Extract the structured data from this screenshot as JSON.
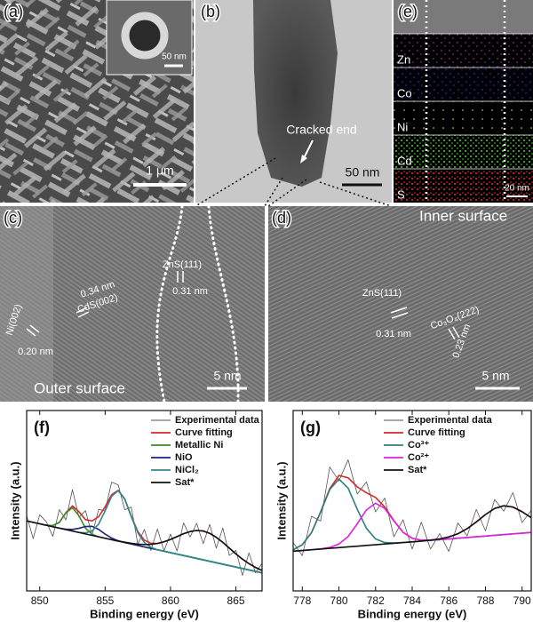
{
  "micrographs": {
    "a": {
      "label": "(a)",
      "inset_scale": "50 nm",
      "scale": "1 μm"
    },
    "b": {
      "label": "(b)",
      "annotation": "Cracked end",
      "scale": "50 nm"
    },
    "e": {
      "label": "(e)",
      "elements": [
        "Zn",
        "Co",
        "Ni",
        "Cd",
        "S"
      ],
      "scale": "20 nm"
    },
    "c": {
      "label": "(c)",
      "texts": [
        "Ni(002)",
        "0.20 nm",
        "0.34 nm",
        "CdS(002)",
        "ZnS(111)",
        "0.31 nm"
      ],
      "scale": "5 nm",
      "caption": "Outer surface"
    },
    "d": {
      "label": "(d)",
      "caption": "Inner surface",
      "texts": [
        "ZnS(111)",
        "0.31 nm",
        "Co₃O₄(222)",
        "0.23 nm"
      ],
      "scale": "5 nm"
    }
  },
  "chart_data": [
    {
      "type": "line",
      "panel": "(f)",
      "xlabel": "Binding energy (eV)",
      "ylabel": "Intensity (a.u.)",
      "x": [
        849,
        849.5,
        850,
        850.5,
        851,
        851.5,
        852,
        852.5,
        853,
        853.5,
        854,
        854.5,
        855,
        855.5,
        856,
        856.5,
        857,
        857.5,
        858,
        858.5,
        859,
        859.5,
        860,
        860.5,
        861,
        861.5,
        862,
        862.5,
        863,
        863.5,
        864,
        864.5,
        865,
        865.5,
        866,
        866.5,
        867
      ],
      "xlim": [
        849,
        867
      ],
      "xticks": [
        850,
        855,
        860,
        865
      ],
      "ylim": [
        0,
        100
      ],
      "legend": "upper right",
      "series": [
        {
          "name": "Experimental data",
          "color": "#555555",
          "values": [
            41.8,
            29,
            42.2,
            38.4,
            30.2,
            45,
            39.4,
            56.1,
            40.9,
            44.5,
            30.8,
            45.1,
            44.6,
            60.3,
            58.8,
            45,
            46.5,
            25.9,
            34.1,
            22.4,
            34.3,
            22.2,
            31.5,
            22.1,
            37.7,
            29.9,
            37.5,
            26.2,
            36.9,
            23.7,
            34.9,
            19.7,
            22.5,
            8.6,
            21.1,
            10,
            15.3
          ]
        },
        {
          "name": "Curve fitting",
          "color": "#d62728",
          "values": [
            38.8,
            38,
            37.2,
            36.4,
            36.2,
            38,
            43.4,
            47.1,
            43.9,
            39.5,
            38.8,
            41.1,
            46.6,
            53.3,
            55.8,
            51,
            41.5,
            32.9,
            28.1,
            26.4,
            26.3,
            27.2,
            28.5,
            30.1,
            31.7,
            32.9,
            33.5,
            33.2,
            31.9,
            29.7,
            26.9,
            23.7,
            20.5,
            17.6,
            15.1,
            13,
            11.3
          ]
        },
        {
          "name": "Metallic Ni",
          "color": "#3a8a2a",
          "values": [
            38.8,
            38,
            37.2,
            36.4,
            36.2,
            38,
            43.2,
            46.2,
            41.6,
            34.8,
            31.4,
            30,
            29.2,
            28.4,
            27.6,
            26.8,
            26,
            25.2,
            24.4,
            23.6,
            22.8,
            22,
            21.2,
            20.4,
            19.6,
            18.8,
            18,
            17.2,
            16.4,
            15.6,
            14.8,
            14,
            13.2,
            12.4,
            11.6,
            10.8,
            10
          ]
        },
        {
          "name": "NiO",
          "color": "#1a237e",
          "values": [
            38.8,
            38,
            37.2,
            36.4,
            35.6,
            34.8,
            34.2,
            34.1,
            34.7,
            35.7,
            35.8,
            34.1,
            31.5,
            29.3,
            27.8,
            26.8,
            26,
            25.2,
            24.4,
            23.6,
            22.8,
            22,
            21.2,
            20.4,
            19.6,
            18.8,
            18,
            17.2,
            16.4,
            15.6,
            14.8,
            14,
            13.2,
            12.4,
            11.6,
            10.8,
            10
          ]
        },
        {
          "name": "NiCl₂",
          "color": "#2e8b8b",
          "values": [
            38.8,
            38,
            37.2,
            36.4,
            35.6,
            34.8,
            34,
            33.2,
            32.4,
            32.2,
            33.2,
            37,
            44.3,
            52.4,
            55.6,
            50.8,
            41.1,
            32.2,
            26.8,
            24.2,
            22.8,
            22,
            21.2,
            20.4,
            19.6,
            18.8,
            18,
            17.2,
            16.4,
            15.6,
            14.8,
            14,
            13.2,
            12.4,
            11.6,
            10.8,
            10
          ]
        },
        {
          "name": "Sat*",
          "color": "#111111",
          "values": [
            38.8,
            38,
            37.2,
            36.4,
            35.6,
            34.8,
            34,
            33.2,
            32.4,
            31.6,
            30.8,
            30,
            29.2,
            28.4,
            27.6,
            27,
            26.4,
            25.9,
            25.7,
            25.8,
            26.3,
            27.2,
            28.5,
            30.1,
            31.7,
            32.9,
            33.5,
            33.2,
            31.9,
            29.7,
            26.9,
            23.7,
            20.5,
            17.6,
            15.1,
            13,
            11.3
          ]
        }
      ]
    },
    {
      "type": "line",
      "panel": "(g)",
      "xlabel": "Binding energy (eV)",
      "ylabel": "Intensity (a.u.)",
      "x": [
        777.5,
        778,
        778.5,
        779,
        779.5,
        780,
        780.5,
        781,
        781.5,
        782,
        782.5,
        783,
        783.5,
        784,
        784.5,
        785,
        785.5,
        786,
        786.5,
        787,
        787.5,
        788,
        788.5,
        789,
        789.5,
        790,
        790.5
      ],
      "xlim": [
        777.5,
        790.5
      ],
      "xticks": [
        778,
        780,
        782,
        784,
        786,
        788,
        790
      ],
      "ylim": [
        0,
        100
      ],
      "legend": "upper right",
      "series": [
        {
          "name": "Experimental data",
          "color": "#555555",
          "values": [
            26.8,
            19.6,
            41.3,
            38.8,
            68.7,
            61,
            72.7,
            53.7,
            60.4,
            43.8,
            51.5,
            30,
            39.5,
            23.2,
            38.1,
            23.2,
            31.8,
            21.9,
            37.7,
            30.5,
            45.2,
            33.3,
            50.7,
            44.2,
            54.5,
            37.9,
            44.6
          ]
        },
        {
          "name": "Curve fitting",
          "color": "#d62728",
          "values": [
            22.8,
            25.6,
            32.3,
            43.8,
            56.7,
            64,
            62.7,
            57.7,
            54.4,
            51.8,
            46.5,
            39,
            32.5,
            29.2,
            28.1,
            28.2,
            28.8,
            29.9,
            31.7,
            34.5,
            38.2,
            42.3,
            45.7,
            47.2,
            46.5,
            43.9,
            40.6
          ]
        },
        {
          "name": "Co³⁺",
          "color": "#2e7d7d",
          "values": [
            22.8,
            25.6,
            32.3,
            43.7,
            56.2,
            62,
            57,
            45.3,
            34.7,
            28.8,
            26.8,
            26.6,
            26.8,
            27.2,
            27.6,
            28,
            28.4,
            28.8,
            29.2,
            29.6,
            30,
            30.4,
            30.8,
            31.2,
            31.6,
            32,
            32.4
          ]
        },
        {
          "name": "Co²⁺",
          "color": "#e020e0",
          "values": [
            22,
            22.4,
            22.8,
            23.3,
            24.1,
            26,
            30.1,
            37.2,
            44.9,
            48.6,
            45.7,
            38.8,
            32.5,
            29.2,
            28.1,
            28.1,
            28.4,
            28.8,
            29.2,
            29.6,
            30,
            30.4,
            30.8,
            31.2,
            31.6,
            32,
            32.4
          ]
        },
        {
          "name": "Sat*",
          "color": "#111111",
          "values": [
            22,
            22.4,
            22.8,
            23.2,
            23.6,
            24,
            24.4,
            24.8,
            25.2,
            25.6,
            26,
            26.4,
            26.8,
            27.2,
            27.6,
            28.1,
            28.8,
            29.9,
            31.7,
            34.5,
            38.2,
            42.3,
            45.7,
            47.2,
            46.5,
            43.9,
            40.6
          ]
        }
      ]
    }
  ]
}
